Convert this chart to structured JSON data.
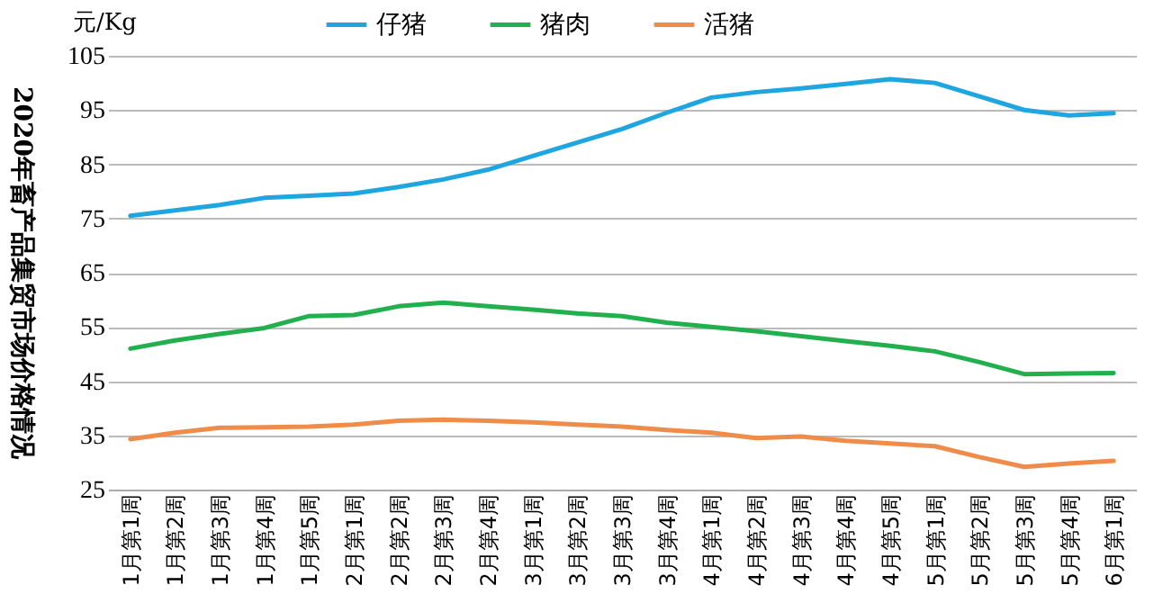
{
  "chart_data": {
    "type": "line",
    "title": "2020年畜产品集贸市场价格情况",
    "ylabel": "元/Kg",
    "categories": [
      "1月第1周",
      "1月第2周",
      "1月第3周",
      "1月第4周",
      "1月第5周",
      "2月第1周",
      "2月第2周",
      "2月第3周",
      "2月第4周",
      "3月第1周",
      "3月第2周",
      "3月第3周",
      "3月第4周",
      "4月第1周",
      "4月第2周",
      "4月第3周",
      "4月第4周",
      "4月第5周",
      "5月第1周",
      "5月第2周",
      "5月第3周",
      "5月第4周",
      "6月第1周"
    ],
    "series": [
      {
        "name": "仔猪",
        "color": "#1fa6e0",
        "values": [
          75.5,
          76.5,
          77.5,
          78.8,
          79.2,
          79.6,
          80.8,
          82.2,
          84,
          86.5,
          89,
          91.5,
          94.5,
          97.3,
          98.3,
          99,
          99.8,
          100.7,
          100,
          97.5,
          95,
          94,
          94.4
        ]
      },
      {
        "name": "猪肉",
        "color": "#22b04e",
        "values": [
          51,
          52.5,
          53.7,
          54.8,
          57,
          57.2,
          58.8,
          59.5,
          58.8,
          58.2,
          57.5,
          57,
          55.8,
          55,
          54.2,
          53.3,
          52.4,
          51.5,
          50.5,
          48.5,
          46.3,
          46.4,
          46.5
        ]
      },
      {
        "name": "活猪",
        "color": "#ef8c4a",
        "values": [
          34.3,
          35.5,
          36.4,
          36.5,
          36.6,
          37,
          37.7,
          37.9,
          37.7,
          37.4,
          37,
          36.6,
          36,
          35.5,
          34.5,
          34.8,
          34,
          33.5,
          33,
          31,
          29.2,
          29.8,
          30.3
        ]
      }
    ],
    "ylim": [
      25,
      105
    ],
    "yticks": [
      25,
      35,
      45,
      55,
      65,
      75,
      85,
      95,
      105
    ],
    "grid": "y",
    "legend": "top",
    "marker": "none",
    "line_style": "solid"
  }
}
